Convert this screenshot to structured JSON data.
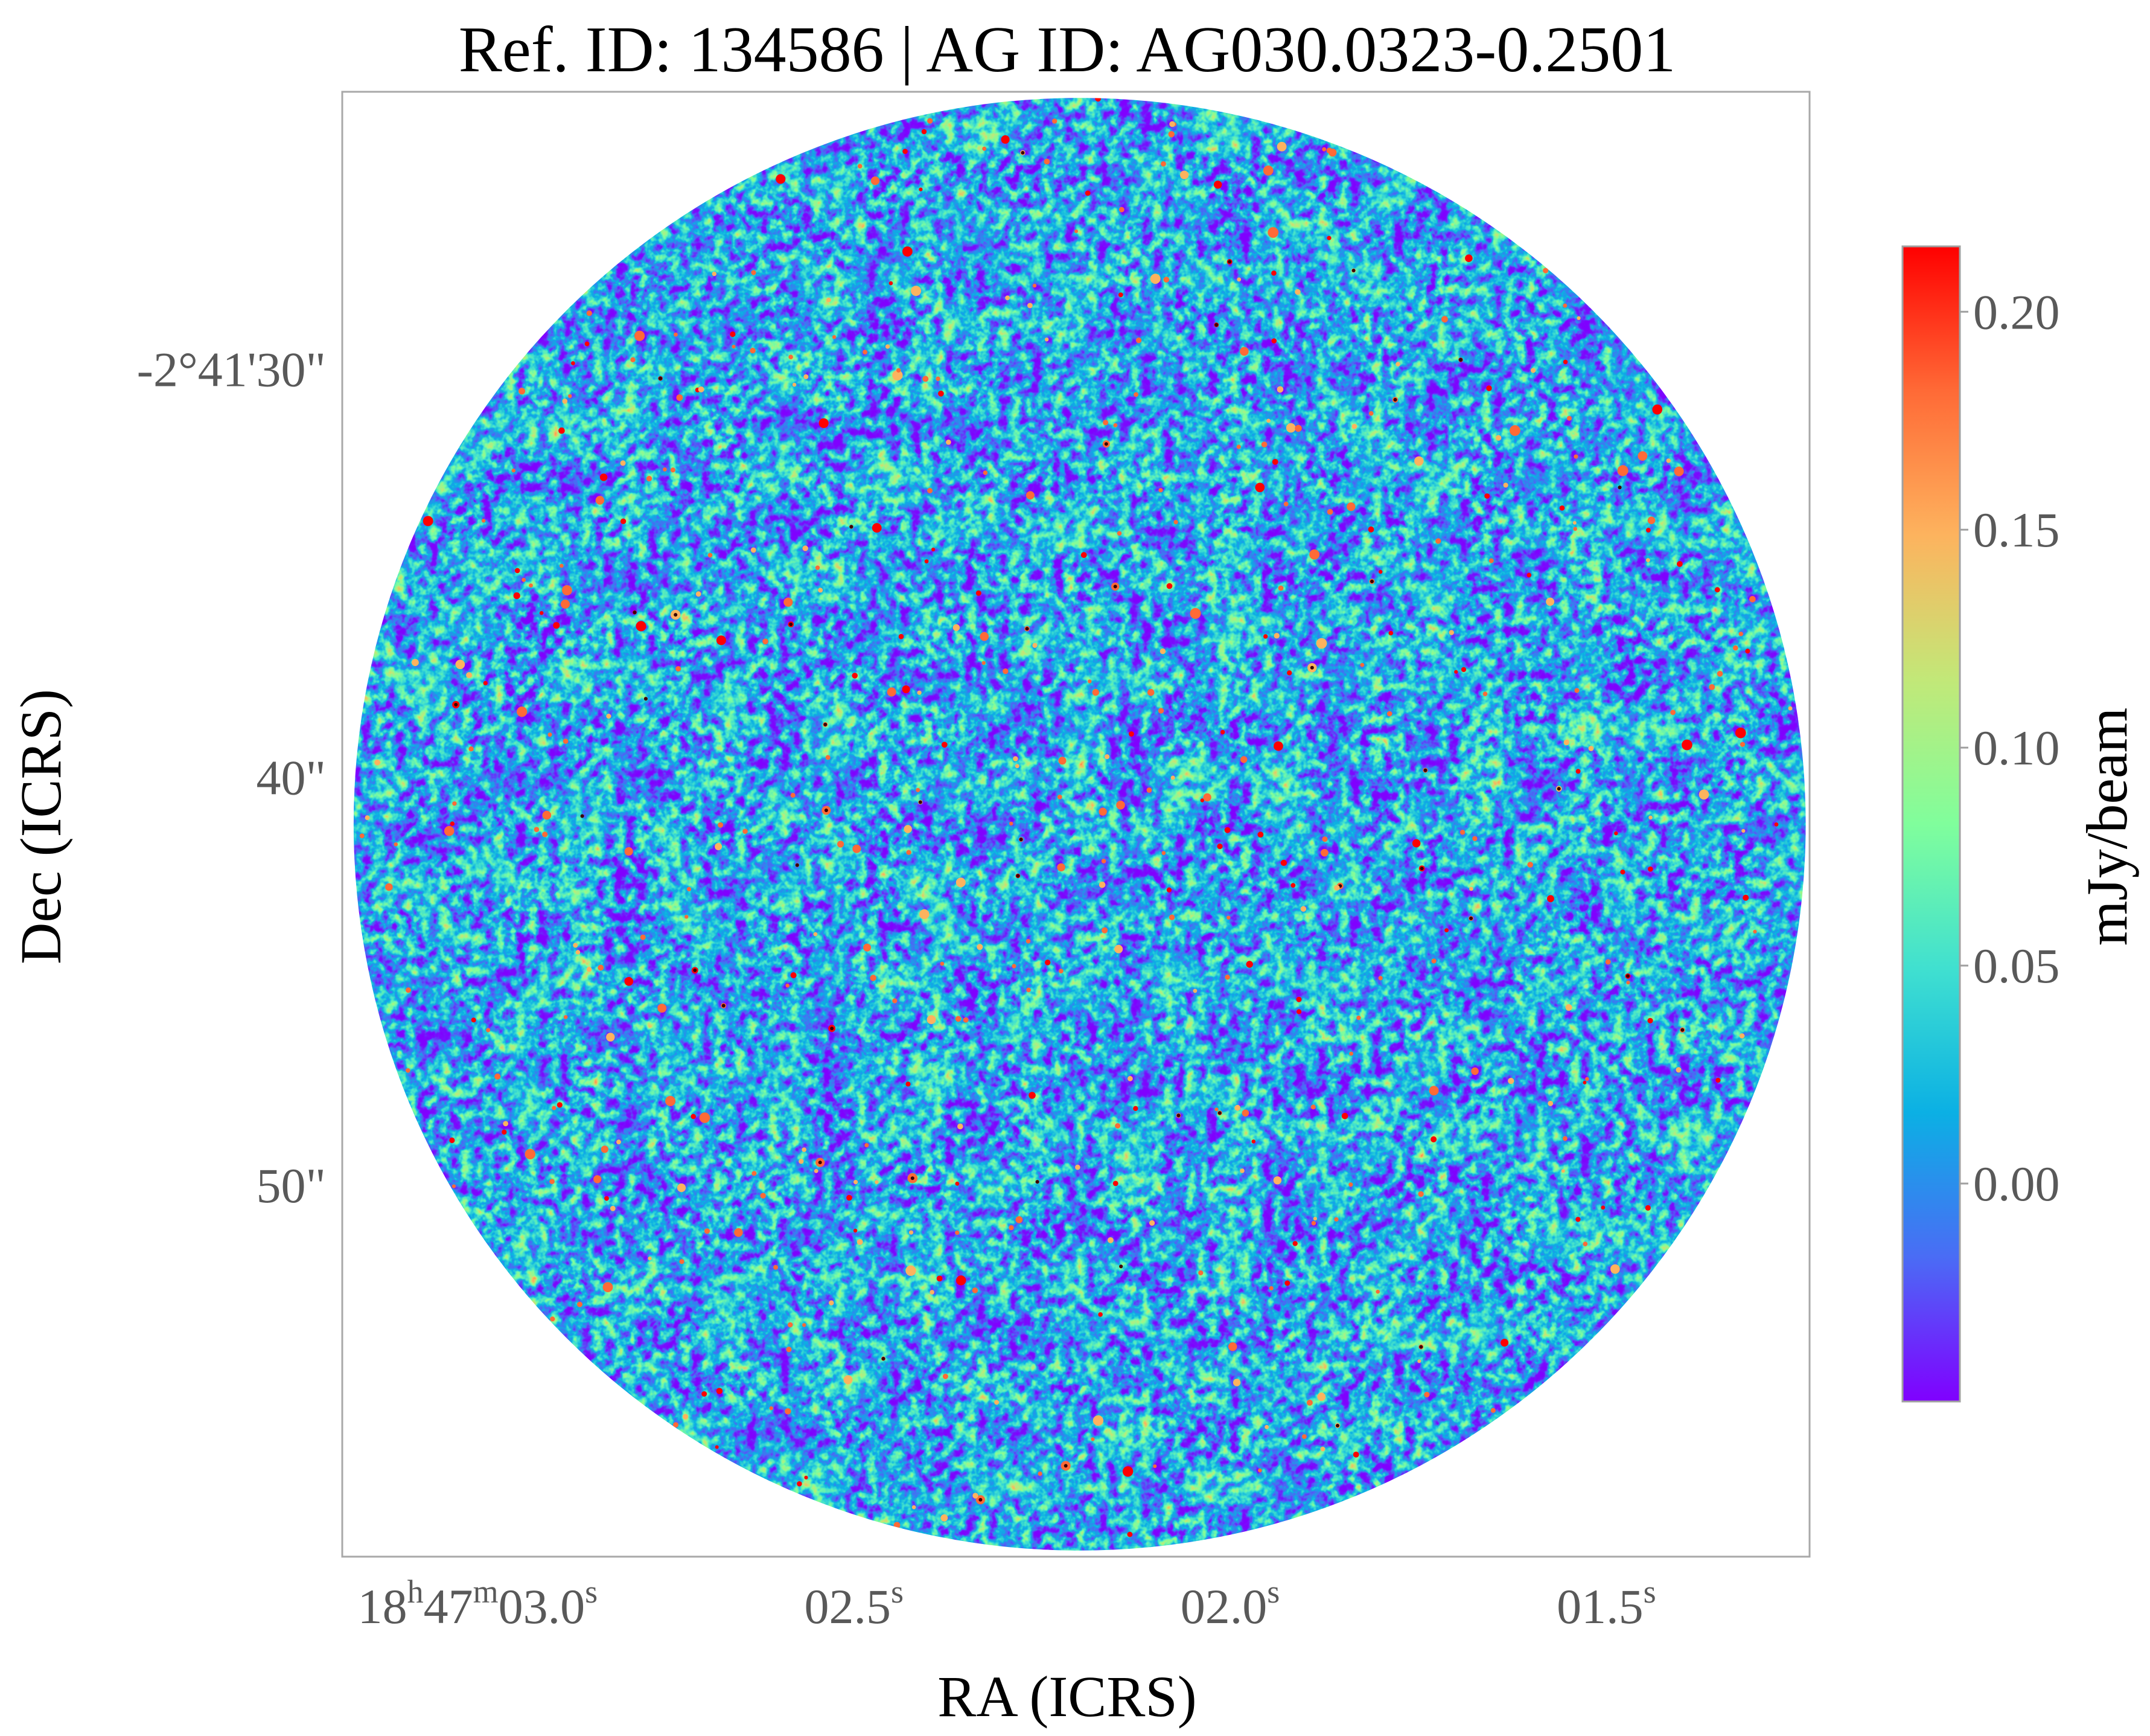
{
  "chart_data": {
    "type": "heatmap",
    "title": "Ref. ID: 134586 | AG ID: AG030.0323-0.2501",
    "xlabel": "RA (ICRS)",
    "ylabel": "Dec (ICRS)",
    "x_ticks": [
      {
        "value": 3.0,
        "parts": [
          {
            "t": "18",
            "sup": false
          },
          {
            "t": "h",
            "sup": true
          },
          {
            "t": "47",
            "sup": false
          },
          {
            "t": "m",
            "sup": true
          },
          {
            "t": "03.0",
            "sup": false
          },
          {
            "t": "s",
            "sup": true
          }
        ]
      },
      {
        "value": 2.5,
        "parts": [
          {
            "t": "02.5",
            "sup": false
          },
          {
            "t": "s",
            "sup": true
          }
        ]
      },
      {
        "value": 2.0,
        "parts": [
          {
            "t": "02.0",
            "sup": false
          },
          {
            "t": "s",
            "sup": true
          }
        ]
      },
      {
        "value": 1.5,
        "parts": [
          {
            "t": "01.5",
            "sup": false
          },
          {
            "t": "s",
            "sup": true
          }
        ]
      }
    ],
    "y_ticks": [
      {
        "value": 30,
        "label": "-2°41'30\""
      },
      {
        "value": 40,
        "label": "40\""
      },
      {
        "value": 50,
        "label": "50\""
      }
    ],
    "xlim": [
      3.18,
      1.23
    ],
    "ylim": [
      23.2,
      59.1
    ],
    "colorbar": {
      "label": "mJy/beam",
      "range": [
        -0.05,
        0.215
      ],
      "ticks": [
        0.0,
        0.05,
        0.1,
        0.15,
        0.2
      ],
      "tick_labels": [
        "0.00",
        "0.05",
        "0.10",
        "0.15",
        "0.20"
      ],
      "colormap": "rainbow",
      "colors": [
        "#8000ff",
        "#4a6cf5",
        "#0bb0e4",
        "#40e0d0",
        "#80fe9c",
        "#c2e878",
        "#fdb35e",
        "#ff6a36",
        "#ff0000"
      ]
    },
    "field": {
      "shape": "circle",
      "center_ra_s": 2.2,
      "center_dec_arcsec": 41.15,
      "radius_arcsec": 17.8,
      "noise_rms_mjy": 0.05,
      "peak_mjy": 0.215
    },
    "grid": false
  }
}
